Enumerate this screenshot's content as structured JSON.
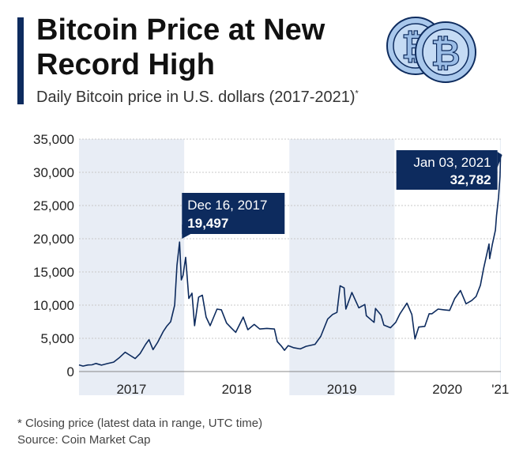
{
  "header": {
    "title": "Bitcoin Price at New Record High",
    "subtitle": "Daily Bitcoin price in U.S. dollars (2017-2021)",
    "subtitle_marker": "*"
  },
  "icons": {
    "coin_a": "bitcoin-coin-icon",
    "coin_b": "bitcoin-coin-icon"
  },
  "colors": {
    "line": "#0d2b5e",
    "band": "#e8edf5",
    "callout": "#0d2b5e",
    "accent": "#0d2b5e"
  },
  "chart_data": {
    "type": "line",
    "xlabel": "",
    "ylabel": "",
    "ylim": [
      0,
      35000
    ],
    "yticks": [
      0,
      5000,
      10000,
      15000,
      20000,
      25000,
      30000,
      35000
    ],
    "ytick_labels": [
      "0",
      "5,000",
      "10,000",
      "15,000",
      "20,000",
      "25,000",
      "30,000",
      "35,000"
    ],
    "x_categories": [
      "2017",
      "2018",
      "2019",
      "2020",
      "'21"
    ],
    "grid": true,
    "series": [
      {
        "points": [
          [
            "2017-01-01",
            998
          ],
          [
            "2017-01-15",
            820
          ],
          [
            "2017-02-01",
            990
          ],
          [
            "2017-02-15",
            1010
          ],
          [
            "2017-03-01",
            1220
          ],
          [
            "2017-03-20",
            970
          ],
          [
            "2017-04-10",
            1200
          ],
          [
            "2017-05-01",
            1420
          ],
          [
            "2017-05-20",
            2050
          ],
          [
            "2017-06-10",
            2900
          ],
          [
            "2017-06-25",
            2500
          ],
          [
            "2017-07-15",
            1950
          ],
          [
            "2017-08-01",
            2700
          ],
          [
            "2017-08-20",
            4100
          ],
          [
            "2017-09-01",
            4800
          ],
          [
            "2017-09-15",
            3300
          ],
          [
            "2017-10-01",
            4400
          ],
          [
            "2017-10-20",
            6000
          ],
          [
            "2017-11-01",
            6800
          ],
          [
            "2017-11-15",
            7500
          ],
          [
            "2017-11-29",
            10000
          ],
          [
            "2017-12-07",
            16000
          ],
          [
            "2017-12-16",
            19497
          ],
          [
            "2017-12-22",
            13800
          ],
          [
            "2017-12-28",
            14500
          ],
          [
            "2018-01-06",
            17200
          ],
          [
            "2018-01-17",
            11000
          ],
          [
            "2018-01-28",
            11800
          ],
          [
            "2018-02-06",
            6900
          ],
          [
            "2018-02-20",
            11200
          ],
          [
            "2018-03-05",
            11500
          ],
          [
            "2018-03-18",
            8200
          ],
          [
            "2018-04-01",
            6900
          ],
          [
            "2018-04-25",
            9400
          ],
          [
            "2018-05-10",
            9300
          ],
          [
            "2018-05-28",
            7300
          ],
          [
            "2018-06-15",
            6500
          ],
          [
            "2018-06-29",
            5900
          ],
          [
            "2018-07-25",
            8200
          ],
          [
            "2018-08-10",
            6300
          ],
          [
            "2018-09-01",
            7100
          ],
          [
            "2018-09-20",
            6400
          ],
          [
            "2018-10-15",
            6500
          ],
          [
            "2018-11-10",
            6400
          ],
          [
            "2018-11-20",
            4500
          ],
          [
            "2018-12-05",
            3800
          ],
          [
            "2018-12-15",
            3200
          ],
          [
            "2018-12-28",
            3900
          ],
          [
            "2019-01-15",
            3600
          ],
          [
            "2019-02-08",
            3400
          ],
          [
            "2019-02-28",
            3800
          ],
          [
            "2019-03-31",
            4100
          ],
          [
            "2019-04-20",
            5300
          ],
          [
            "2019-05-14",
            7900
          ],
          [
            "2019-05-31",
            8600
          ],
          [
            "2019-06-15",
            8900
          ],
          [
            "2019-06-26",
            12900
          ],
          [
            "2019-07-10",
            12600
          ],
          [
            "2019-07-16",
            9400
          ],
          [
            "2019-08-06",
            11900
          ],
          [
            "2019-08-30",
            9600
          ],
          [
            "2019-09-20",
            10100
          ],
          [
            "2019-09-25",
            8400
          ],
          [
            "2019-10-22",
            7400
          ],
          [
            "2019-10-27",
            9500
          ],
          [
            "2019-11-15",
            8500
          ],
          [
            "2019-11-25",
            7000
          ],
          [
            "2019-12-18",
            6600
          ],
          [
            "2020-01-05",
            7400
          ],
          [
            "2020-01-20",
            8700
          ],
          [
            "2020-02-13",
            10300
          ],
          [
            "2020-03-01",
            8600
          ],
          [
            "2020-03-12",
            4900
          ],
          [
            "2020-03-25",
            6700
          ],
          [
            "2020-04-15",
            6800
          ],
          [
            "2020-04-30",
            8700
          ],
          [
            "2020-05-10",
            8700
          ],
          [
            "2020-05-31",
            9400
          ],
          [
            "2020-06-20",
            9300
          ],
          [
            "2020-07-10",
            9200
          ],
          [
            "2020-07-28",
            11000
          ],
          [
            "2020-08-17",
            12200
          ],
          [
            "2020-09-05",
            10200
          ],
          [
            "2020-09-25",
            10700
          ],
          [
            "2020-10-10",
            11300
          ],
          [
            "2020-10-25",
            13000
          ],
          [
            "2020-11-05",
            15500
          ],
          [
            "2020-11-24",
            19200
          ],
          [
            "2020-11-26",
            17000
          ],
          [
            "2020-12-05",
            19100
          ],
          [
            "2020-12-16",
            21300
          ],
          [
            "2020-12-20",
            23500
          ],
          [
            "2020-12-27",
            26300
          ],
          [
            "2021-01-01",
            29400
          ],
          [
            "2021-01-03",
            32782
          ]
        ]
      }
    ],
    "annotations": [
      {
        "date": "Dec 16, 2017",
        "value": "19,497",
        "x": "2017-12-16",
        "y": 19497
      },
      {
        "date": "Jan 03, 2021",
        "value": "32,782",
        "x": "2021-01-03",
        "y": 32782
      }
    ]
  },
  "footer": {
    "footnote": "* Closing price (latest data in range, UTC time)",
    "source": "Source: Coin Market Cap"
  }
}
